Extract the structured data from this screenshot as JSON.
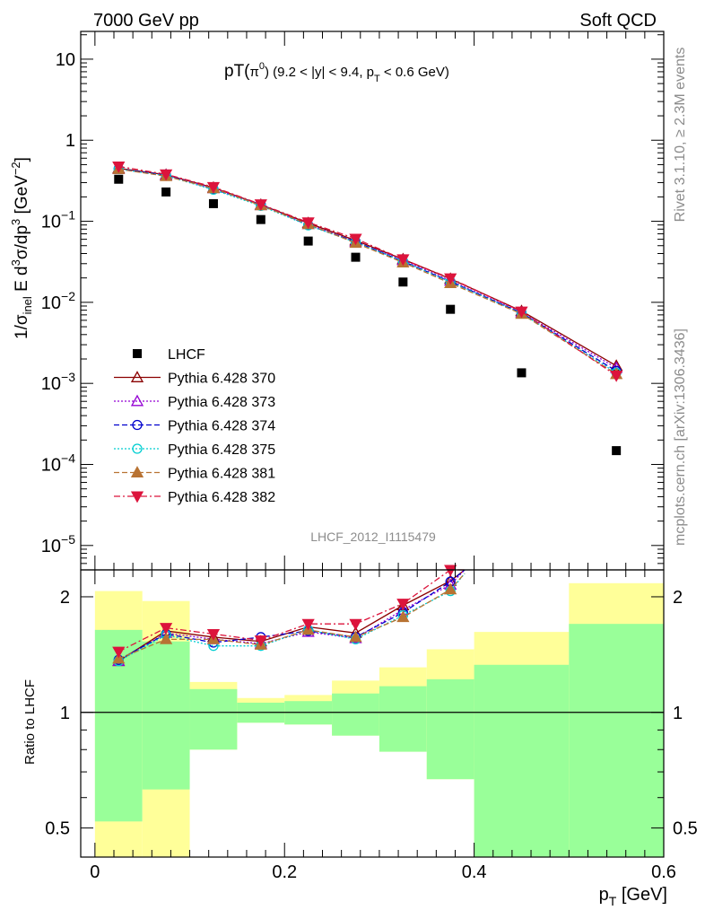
{
  "header": {
    "left": "7000 GeV pp",
    "right": "Soft QCD"
  },
  "side": {
    "rivet": "Rivet 3.1.10, ≥ 2.3M events",
    "source": "mcplots.cern.ch [arXiv:1306.3436]"
  },
  "watermark": "LHCF_2012_I1115479",
  "chart_data": [
    {
      "type": "scatter",
      "title": "pT(π⁰) (9.2 < |y| < 9.4, p_T < 0.6 GeV)",
      "title_parts": {
        "main": "pT(",
        "pi": "π",
        "zero": "0",
        "rest": ") (9.2 < |y| < 9.4, p",
        "sub": "T",
        "tail": " < 0.6 GeV)"
      },
      "ylabel": "1/σ_inel E d³σ/dp³ [GeV⁻²]",
      "xlabel": "p_T [GeV]",
      "yscale": "log",
      "ylim": [
        5e-06,
        22
      ],
      "xlim": [
        -0.015,
        0.6
      ],
      "ytick_labels": [
        {
          "v": 10,
          "base": "10",
          "exp": ""
        },
        {
          "v": 1,
          "base": "1",
          "exp": ""
        },
        {
          "v": 0.1,
          "base": "10",
          "exp": "−1"
        },
        {
          "v": 0.01,
          "base": "10",
          "exp": "−2"
        },
        {
          "v": 0.001,
          "base": "10",
          "exp": "−3"
        },
        {
          "v": 0.0001,
          "base": "10",
          "exp": "−4"
        },
        {
          "v": 1e-05,
          "base": "10",
          "exp": "−5"
        }
      ],
      "legend_position": "lower-left",
      "x": [
        0.025,
        0.075,
        0.125,
        0.175,
        0.225,
        0.275,
        0.325,
        0.375,
        0.45,
        0.55
      ],
      "data": {
        "name": "LHCF",
        "color": "#000000",
        "values": [
          0.33,
          0.23,
          0.165,
          0.105,
          0.057,
          0.036,
          0.0178,
          0.0082,
          0.00135,
          0.000148
        ]
      },
      "series": [
        {
          "name": "Pythia 6.428 370",
          "color": "#8b0000",
          "marker": "triangle-up-open",
          "dash": "",
          "values": [
            0.45,
            0.375,
            0.26,
            0.16,
            0.095,
            0.058,
            0.034,
            0.0195,
            0.0078,
            0.00165
          ]
        },
        {
          "name": "Pythia 6.428 373",
          "color": "#9400d3",
          "marker": "triangle-up-open",
          "dash": "2,2",
          "values": [
            0.44,
            0.37,
            0.255,
            0.158,
            0.092,
            0.056,
            0.033,
            0.0185,
            0.0075,
            0.00155
          ]
        },
        {
          "name": "Pythia 6.428 374",
          "color": "#0000cd",
          "marker": "circle-open",
          "dash": "6,3",
          "values": [
            0.445,
            0.37,
            0.25,
            0.16,
            0.09,
            0.056,
            0.032,
            0.018,
            0.0074,
            0.00142
          ]
        },
        {
          "name": "Pythia 6.428 375",
          "color": "#00ced1",
          "marker": "circle-open",
          "dash": "2,2",
          "values": [
            0.44,
            0.365,
            0.245,
            0.155,
            0.089,
            0.055,
            0.032,
            0.0178,
            0.0073,
            0.00135
          ]
        },
        {
          "name": "Pythia 6.428 381",
          "color": "#b87333",
          "marker": "triangle-up-filled",
          "dash": "6,3",
          "values": [
            0.44,
            0.36,
            0.255,
            0.157,
            0.092,
            0.054,
            0.031,
            0.0172,
            0.0072,
            0.0013
          ]
        },
        {
          "name": "Pythia 6.428 382",
          "color": "#dc143c",
          "marker": "triangle-down-filled",
          "dash": "7,3,2,3",
          "values": [
            0.475,
            0.38,
            0.265,
            0.162,
            0.097,
            0.061,
            0.034,
            0.0198,
            0.0077,
            0.00125
          ]
        }
      ]
    },
    {
      "type": "line",
      "ylabel": "Ratio to LHCF",
      "yscale": "log",
      "ylim": [
        0.42,
        2.35
      ],
      "xlim": [
        -0.015,
        0.6
      ],
      "yticks": [
        0.5,
        1,
        2
      ],
      "ytick_labels": [
        "0.5",
        "1",
        "2"
      ],
      "xticks": [
        0,
        0.2,
        0.4,
        0.6
      ],
      "xtick_labels": [
        "0",
        "0.2",
        "0.4",
        "0.6"
      ],
      "bands": {
        "green_color": "#99ff99",
        "yellow_color": "#ffff99",
        "edges": [
          0.0,
          0.05,
          0.1,
          0.15,
          0.2,
          0.25,
          0.3,
          0.35,
          0.4,
          0.5,
          0.6
        ],
        "inner_low": [
          0.52,
          0.63,
          0.8,
          0.94,
          0.93,
          0.87,
          0.79,
          0.67,
          0.42,
          0.42
        ],
        "inner_high": [
          1.64,
          1.53,
          1.15,
          1.06,
          1.07,
          1.12,
          1.17,
          1.22,
          1.33,
          1.7
        ],
        "outer_low": [
          0.42,
          0.42,
          0.8,
          0.94,
          0.93,
          0.87,
          0.79,
          0.67,
          0.43,
          0.42
        ],
        "outer_high": [
          2.07,
          1.95,
          1.2,
          1.09,
          1.11,
          1.21,
          1.31,
          1.46,
          1.62,
          2.17
        ]
      },
      "x": [
        0.025,
        0.075,
        0.125,
        0.175,
        0.225,
        0.275,
        0.325,
        0.375,
        0.39
      ],
      "series": [
        {
          "name": "Pythia 6.428 370",
          "values": [
            1.36,
            1.63,
            1.57,
            1.53,
            1.67,
            1.61,
            1.9,
            2.2,
            2.4
          ]
        },
        {
          "name": "Pythia 6.428 373",
          "values": [
            1.36,
            1.61,
            1.55,
            1.51,
            1.62,
            1.56,
            1.85,
            2.15,
            2.35
          ]
        },
        {
          "name": "Pythia 6.428 374",
          "values": [
            1.37,
            1.6,
            1.52,
            1.57,
            1.63,
            1.57,
            1.82,
            2.19,
            2.4
          ]
        },
        {
          "name": "Pythia 6.428 375",
          "values": [
            1.36,
            1.59,
            1.49,
            1.49,
            1.64,
            1.55,
            1.79,
            2.07,
            2.3
          ]
        },
        {
          "name": "Pythia 6.428 381",
          "values": [
            1.38,
            1.55,
            1.55,
            1.5,
            1.64,
            1.57,
            1.77,
            2.09,
            2.3
          ]
        },
        {
          "name": "Pythia 6.428 382",
          "values": [
            1.44,
            1.66,
            1.6,
            1.54,
            1.7,
            1.7,
            1.92,
            2.4,
            2.45
          ]
        }
      ]
    }
  ]
}
